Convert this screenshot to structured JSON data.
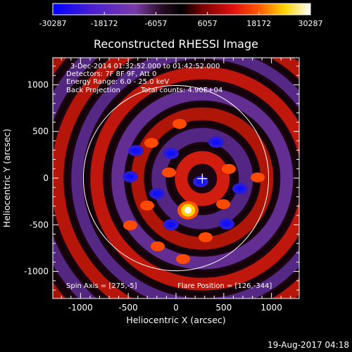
{
  "chart_data": {
    "type": "heatmap",
    "title": "Reconstructed RHESSI Image",
    "xlabel": "Heliocentric X (arcsec)",
    "ylabel": "Heliocentric Y (arcsec)",
    "xlim": [
      -1290,
      1290
    ],
    "ylim": [
      -1290,
      1290
    ],
    "xticks": [
      "-1000",
      "-500",
      "0",
      "500",
      "1000"
    ],
    "xtick_values": [
      -1000,
      -500,
      0,
      500,
      1000
    ],
    "yticks": [
      "1000",
      "500",
      "0",
      "-500",
      "-1000"
    ],
    "ytick_values": [
      1000,
      500,
      0,
      -500,
      -1000
    ],
    "colorbar": {
      "ticks": [
        "-30287",
        "-18172",
        "-6057",
        "6057",
        "18172",
        "30287"
      ],
      "tick_values": [
        -30287,
        -18172,
        -6057,
        6057,
        18172,
        30287
      ],
      "range": [
        -30287,
        30287
      ],
      "colormap": [
        "#0000ff",
        "#4a1fd0",
        "#7a3aa8",
        "#1a0a18",
        "#000000",
        "#7a0000",
        "#e01010",
        "#ff5a00",
        "#ffd400",
        "#ffffff"
      ]
    },
    "annotations": [
      "3-Dec-2014 01:32:52.000 to 01:42:52.000",
      "Detectors: 7F 8F 9F, Att 0",
      "Energy Range: 6.0 - 25.0 keV",
      "Back Projection",
      "Total counts: 4.90E+04",
      "Spin Axis = [275,-5]",
      "Flare Position = [126,-344]"
    ],
    "solar_limb_radius_arcsec": 970,
    "flare_position": [
      126,
      -344
    ],
    "spin_axis": [
      275,
      -5
    ],
    "grid": false
  },
  "footer": {
    "timestamp": "19-Aug-2017 04:18"
  },
  "colors": {
    "background": "#000000",
    "foreground": "#ffffff"
  }
}
